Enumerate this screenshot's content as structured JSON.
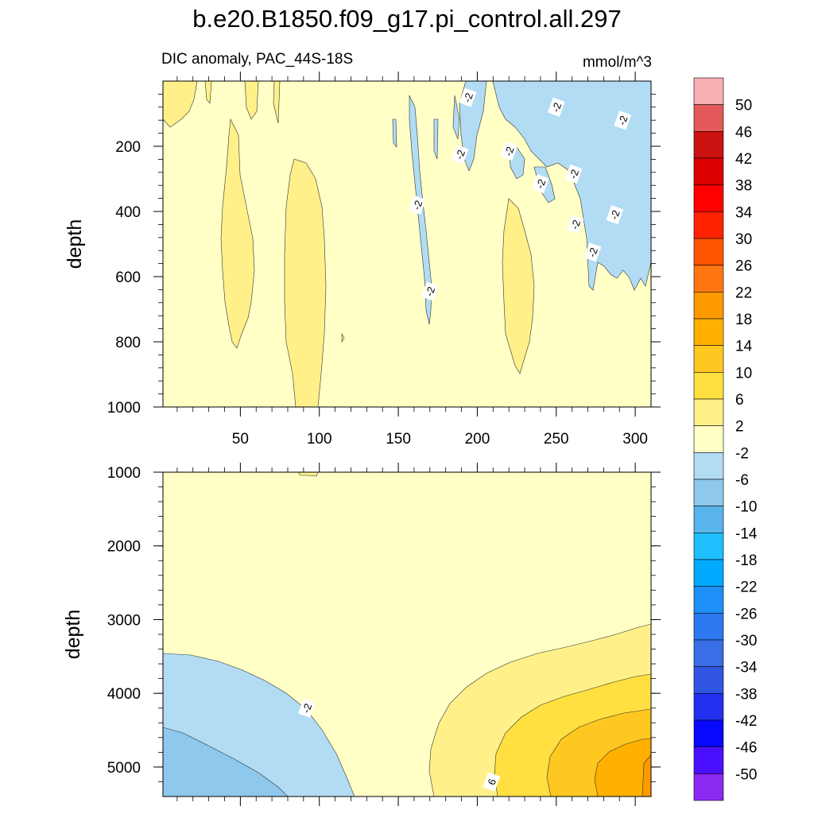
{
  "chart_data": {
    "type": "contour",
    "title": "b.e20.B1850.f09_g17.pi_control.all.297",
    "subtitle": "DIC anomaly, PAC_44S-18S",
    "units": "mmol/m^3",
    "xlabel": "",
    "xlim": [
      1,
      310
    ],
    "x_ticks": [
      50,
      100,
      150,
      200,
      250,
      300
    ],
    "panels": [
      {
        "name": "upper",
        "ylabel": "depth",
        "ylim": [
          0,
          1000
        ],
        "y_ticks": [
          200,
          400,
          600,
          800,
          1000
        ],
        "contour_labels": [
          {
            "text": "-2",
            "x": 194,
            "y": 50
          },
          {
            "text": "-2",
            "x": 250,
            "y": 80
          },
          {
            "text": "-2",
            "x": 292,
            "y": 120
          },
          {
            "text": "-2",
            "x": 189,
            "y": 225
          },
          {
            "text": "-2",
            "x": 220,
            "y": 215
          },
          {
            "text": "-2",
            "x": 261,
            "y": 285
          },
          {
            "text": "-2",
            "x": 240,
            "y": 315
          },
          {
            "text": "-2",
            "x": 162,
            "y": 380
          },
          {
            "text": "-2",
            "x": 287,
            "y": 410
          },
          {
            "text": "-2",
            "x": 262,
            "y": 440
          },
          {
            "text": "-2",
            "x": 273,
            "y": 525
          },
          {
            "text": "-2",
            "x": 170,
            "y": 645
          }
        ]
      },
      {
        "name": "lower",
        "ylabel": "depth",
        "ylim": [
          1000,
          5400
        ],
        "y_ticks": [
          1000,
          2000,
          3000,
          4000,
          5000
        ],
        "contour_labels": [
          {
            "text": "-2",
            "x": 92,
            "y": 4200
          },
          {
            "text": "6",
            "x": 209,
            "y": 5200
          }
        ]
      }
    ],
    "colorbar": {
      "labels": [
        "50",
        "46",
        "42",
        "38",
        "34",
        "30",
        "26",
        "22",
        "18",
        "14",
        "10",
        "6",
        "2",
        "-2",
        "-6",
        "-10",
        "-14",
        "-18",
        "-22",
        "-26",
        "-30",
        "-34",
        "-38",
        "-42",
        "-46",
        "-50"
      ],
      "colors": [
        "#f8b0b3",
        "#e35959",
        "#cc1111",
        "#dd0000",
        "#ff0000",
        "#ff2200",
        "#ff5500",
        "#ff7711",
        "#ff9900",
        "#ffb000",
        "#ffc820",
        "#ffe040",
        "#fff08a",
        "#ffffc6",
        "#b2dcf4",
        "#8ec8ec",
        "#5ab4ec",
        "#1ec0ff",
        "#00aaff",
        "#1c90f6",
        "#2c78ee",
        "#3a6ee6",
        "#3055e0",
        "#2230f0",
        "#0808ff",
        "#4a10ff",
        "#8a2af0"
      ]
    }
  }
}
